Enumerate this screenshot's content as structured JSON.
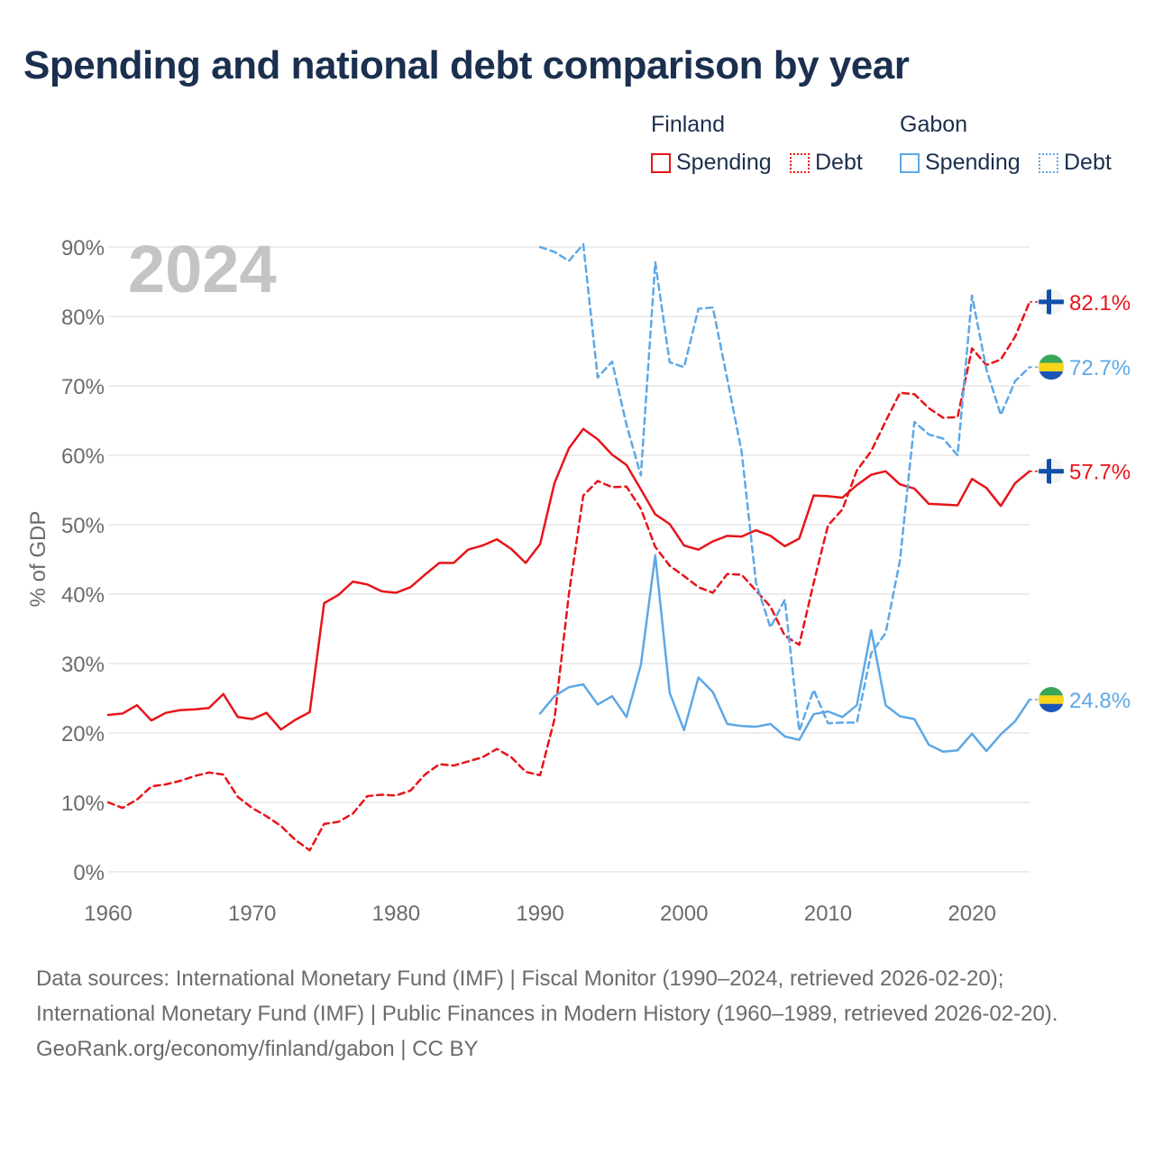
{
  "title": "Spending and national debt comparison by year",
  "legend": {
    "groups": [
      {
        "label": "Finland",
        "items": [
          {
            "label": "Spending"
          },
          {
            "label": "Debt"
          }
        ]
      },
      {
        "label": "Gabon",
        "items": [
          {
            "label": "Spending"
          },
          {
            "label": "Debt"
          }
        ]
      }
    ]
  },
  "colors": {
    "finland": "#e8141a",
    "gabon": "#5ea8e6",
    "grid": "#e6e6e6",
    "year_watermark": "#c4c4c4"
  },
  "chart_data": {
    "type": "line",
    "title": "Spending and national debt comparison by year",
    "year_label": "2024",
    "xlabel": "",
    "ylabel": "% of GDP",
    "xlim": [
      1960,
      2024
    ],
    "ylim": [
      0,
      90
    ],
    "x_ticks": [
      1960,
      1970,
      1980,
      1990,
      2000,
      2010,
      2020
    ],
    "y_ticks": [
      0,
      10,
      20,
      30,
      40,
      50,
      60,
      70,
      80,
      90
    ],
    "y_tick_labels": [
      "0%",
      "10%",
      "20%",
      "30%",
      "40%",
      "50%",
      "60%",
      "70%",
      "80%",
      "90%"
    ],
    "grid": true,
    "series": [
      {
        "name": "Finland Spending",
        "country": "Finland",
        "style": "solid",
        "color": "#e8141a",
        "end_label": "57.7%",
        "start_year": 1960,
        "values": [
          22.6,
          22.8,
          24.0,
          21.8,
          22.9,
          23.3,
          23.4,
          23.6,
          25.6,
          22.3,
          22.0,
          22.9,
          20.5,
          21.9,
          23.0,
          38.7,
          39.9,
          41.8,
          41.4,
          40.4,
          40.2,
          41.0,
          42.8,
          44.5,
          44.5,
          46.4,
          47.0,
          47.9,
          46.5,
          44.5,
          47.2,
          56.0,
          61.0,
          63.8,
          62.3,
          60.1,
          58.6,
          55.1,
          51.5,
          50.1,
          47.0,
          46.4,
          47.6,
          48.4,
          48.3,
          49.2,
          48.4,
          46.9,
          48.0,
          54.2,
          54.1,
          53.9,
          55.7,
          57.2,
          57.7,
          55.8,
          55.2,
          53.0,
          52.9,
          52.8,
          56.6,
          55.3,
          52.7,
          56.0,
          57.7
        ]
      },
      {
        "name": "Finland Debt",
        "country": "Finland",
        "style": "dashed",
        "color": "#e8141a",
        "end_label": "82.1%",
        "start_year": 1960,
        "values": [
          10.0,
          9.2,
          10.4,
          12.3,
          12.6,
          13.1,
          13.8,
          14.3,
          14.0,
          10.8,
          9.2,
          8.0,
          6.6,
          4.6,
          3.1,
          6.9,
          7.2,
          8.4,
          10.9,
          11.1,
          11.0,
          11.7,
          14.0,
          15.5,
          15.3,
          15.9,
          16.5,
          17.7,
          16.5,
          14.4,
          13.9,
          22.0,
          40.0,
          54.2,
          56.3,
          55.4,
          55.5,
          52.3,
          46.8,
          44.1,
          42.6,
          41.0,
          40.2,
          42.9,
          42.8,
          40.5,
          38.2,
          34.0,
          32.7,
          41.6,
          49.9,
          52.2,
          57.8,
          60.6,
          64.9,
          69.0,
          68.8,
          66.8,
          65.4,
          65.5,
          75.4,
          73.0,
          73.8,
          77.1,
          82.1
        ]
      },
      {
        "name": "Gabon Spending",
        "country": "Gabon",
        "style": "solid",
        "color": "#5ea8e6",
        "end_label": "24.8%",
        "start_year": 1990,
        "values": [
          22.8,
          25.3,
          26.6,
          27.0,
          24.1,
          25.3,
          22.3,
          29.8,
          45.6,
          25.8,
          20.4,
          28.0,
          25.9,
          21.3,
          21.0,
          20.9,
          21.3,
          19.5,
          19.0,
          22.7,
          23.1,
          22.3,
          24.0,
          34.8,
          24.0,
          22.4,
          22.0,
          18.3,
          17.3,
          17.5,
          19.9,
          17.4,
          19.8,
          21.7,
          24.8
        ]
      },
      {
        "name": "Gabon Debt",
        "country": "Gabon",
        "style": "dashed",
        "color": "#5ea8e6",
        "end_label": "72.7%",
        "start_year": 1990,
        "values": [
          90.0,
          89.3,
          88.0,
          90.4,
          71.2,
          73.5,
          64.4,
          57.1,
          87.8,
          73.4,
          72.7,
          81.1,
          81.3,
          71.0,
          60.5,
          41.6,
          35.2,
          39.2,
          20.3,
          26.2,
          21.4,
          21.5,
          21.5,
          31.5,
          34.4,
          44.9,
          64.8,
          63.0,
          62.4,
          60.0,
          83.0,
          72.4,
          65.8,
          70.7,
          72.7
        ]
      }
    ]
  },
  "footer": {
    "sources": "Data sources: International Monetary Fund (IMF) | Fiscal Monitor (1990–2024, retrieved 2026-02-20); International Monetary Fund (IMF) | Public Finances in Modern History (1960–1989, retrieved 2026-02-20).",
    "attribution": "GeoRank.org/economy/finland/gabon | CC BY"
  }
}
